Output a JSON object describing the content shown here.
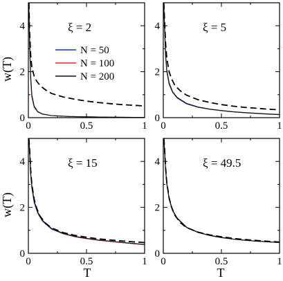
{
  "figure": {
    "ylabel": "w(T)",
    "xlabel": "T"
  },
  "legend": {
    "entries": [
      {
        "label": "N = 50",
        "color": "#1f2fd6"
      },
      {
        "label": "N = 100",
        "color": "#d42a2a"
      },
      {
        "label": "N = 200",
        "color": "#111111"
      }
    ]
  },
  "colors": {
    "n50": "#1f2fd6",
    "n100": "#d42a2a",
    "n200": "#111111",
    "theory": "#000000"
  },
  "chart_data": [
    {
      "type": "line",
      "title": "ξ = 2",
      "xlim": [
        0,
        1
      ],
      "ylim": [
        0,
        5
      ],
      "xticks": [
        0,
        0.5,
        1
      ],
      "xtick_labels": [
        "0",
        "0.5",
        "1"
      ],
      "yticks": [
        0,
        2,
        4
      ],
      "ytick_labels": [
        "0",
        "2",
        "4"
      ],
      "show_legend": true,
      "series": [
        {
          "name": "N = 50",
          "style": "solid",
          "x": [
            0.004,
            0.01,
            0.02,
            0.03,
            0.05,
            0.08,
            0.12,
            0.2,
            0.35,
            0.5,
            0.7,
            1.0
          ],
          "y": [
            5.0,
            3.2,
            1.6,
            0.9,
            0.45,
            0.25,
            0.15,
            0.09,
            0.05,
            0.035,
            0.02,
            0.01
          ]
        },
        {
          "name": "N = 100",
          "style": "solid",
          "x": [
            0.004,
            0.01,
            0.02,
            0.03,
            0.05,
            0.08,
            0.12,
            0.2,
            0.35,
            0.5,
            0.7,
            1.0
          ],
          "y": [
            5.0,
            3.3,
            1.7,
            0.95,
            0.48,
            0.26,
            0.16,
            0.09,
            0.05,
            0.035,
            0.02,
            0.01
          ]
        },
        {
          "name": "N = 200",
          "style": "solid",
          "x": [
            0.004,
            0.01,
            0.02,
            0.03,
            0.05,
            0.08,
            0.12,
            0.2,
            0.35,
            0.5,
            0.7,
            1.0
          ],
          "y": [
            5.0,
            3.4,
            1.8,
            1.0,
            0.5,
            0.27,
            0.16,
            0.09,
            0.05,
            0.035,
            0.02,
            0.01
          ]
        },
        {
          "style": "dashed",
          "x": [
            0.005,
            0.01,
            0.02,
            0.03,
            0.05,
            0.07,
            0.1,
            0.15,
            0.2,
            0.3,
            0.4,
            0.5,
            0.6,
            0.7,
            0.8,
            0.9,
            1.0
          ],
          "y": [
            5.0,
            3.8,
            2.7,
            2.2,
            1.8,
            1.6,
            1.4,
            1.2,
            1.05,
            0.9,
            0.8,
            0.72,
            0.66,
            0.61,
            0.57,
            0.54,
            0.51
          ]
        }
      ]
    },
    {
      "type": "line",
      "title": "ξ = 5",
      "xlim": [
        0,
        1
      ],
      "ylim": [
        0,
        5
      ],
      "xticks": [
        0,
        0.5,
        1
      ],
      "xtick_labels": [
        "0",
        "0.5",
        "1"
      ],
      "yticks": [
        0,
        2,
        4
      ],
      "ytick_labels": [
        "0",
        "2",
        "4"
      ],
      "show_legend": false,
      "series": [
        {
          "name": "N = 50",
          "style": "solid",
          "x": [
            0.004,
            0.01,
            0.02,
            0.03,
            0.05,
            0.08,
            0.12,
            0.2,
            0.3,
            0.4,
            0.5,
            0.6,
            0.7,
            0.8,
            0.9,
            1.0
          ],
          "y": [
            5.0,
            3.9,
            2.6,
            2.0,
            1.45,
            1.1,
            0.85,
            0.6,
            0.45,
            0.36,
            0.3,
            0.25,
            0.21,
            0.18,
            0.15,
            0.13
          ]
        },
        {
          "name": "N = 100",
          "style": "solid",
          "x": [
            0.004,
            0.01,
            0.02,
            0.03,
            0.05,
            0.08,
            0.12,
            0.2,
            0.3,
            0.4,
            0.5,
            0.6,
            0.7,
            0.8,
            0.9,
            1.0
          ],
          "y": [
            5.0,
            4.0,
            2.7,
            2.05,
            1.5,
            1.12,
            0.87,
            0.62,
            0.46,
            0.37,
            0.31,
            0.26,
            0.22,
            0.19,
            0.16,
            0.14
          ]
        },
        {
          "name": "N = 200",
          "style": "solid",
          "x": [
            0.004,
            0.01,
            0.02,
            0.03,
            0.05,
            0.08,
            0.12,
            0.2,
            0.3,
            0.4,
            0.5,
            0.6,
            0.7,
            0.8,
            0.9,
            1.0
          ],
          "y": [
            5.0,
            4.1,
            2.75,
            2.1,
            1.52,
            1.13,
            0.88,
            0.62,
            0.46,
            0.37,
            0.31,
            0.26,
            0.22,
            0.19,
            0.16,
            0.14
          ]
        },
        {
          "style": "dashed",
          "x": [
            0.005,
            0.01,
            0.02,
            0.03,
            0.05,
            0.07,
            0.1,
            0.15,
            0.2,
            0.3,
            0.4,
            0.5,
            0.6,
            0.7,
            0.8,
            0.9,
            1.0
          ],
          "y": [
            5.0,
            4.3,
            3.2,
            2.6,
            2.0,
            1.7,
            1.4,
            1.15,
            0.98,
            0.78,
            0.66,
            0.57,
            0.5,
            0.45,
            0.41,
            0.37,
            0.34
          ]
        }
      ]
    },
    {
      "type": "line",
      "title": "ξ = 15",
      "xlim": [
        0,
        1
      ],
      "ylim": [
        0,
        5
      ],
      "xticks": [
        0,
        0.5,
        1
      ],
      "xtick_labels": [
        "0",
        "0.5",
        "1"
      ],
      "yticks": [
        0,
        2,
        4
      ],
      "ytick_labels": [
        "0",
        "2",
        "4"
      ],
      "show_legend": false,
      "series": [
        {
          "name": "N = 50",
          "style": "solid",
          "x": [
            0.004,
            0.01,
            0.02,
            0.03,
            0.05,
            0.08,
            0.12,
            0.2,
            0.3,
            0.4,
            0.5,
            0.6,
            0.7,
            0.8,
            0.9,
            1.0
          ],
          "y": [
            5.0,
            4.4,
            3.4,
            2.85,
            2.2,
            1.75,
            1.4,
            1.05,
            0.85,
            0.72,
            0.64,
            0.57,
            0.52,
            0.47,
            0.42,
            0.38
          ]
        },
        {
          "name": "N = 100",
          "style": "solid",
          "x": [
            0.004,
            0.01,
            0.02,
            0.03,
            0.05,
            0.08,
            0.12,
            0.2,
            0.3,
            0.4,
            0.5,
            0.6,
            0.7,
            0.8,
            0.9,
            1.0
          ],
          "y": [
            5.0,
            4.45,
            3.45,
            2.9,
            2.25,
            1.78,
            1.42,
            1.07,
            0.86,
            0.73,
            0.64,
            0.57,
            0.52,
            0.47,
            0.42,
            0.38
          ]
        },
        {
          "name": "N = 200",
          "style": "solid",
          "x": [
            0.004,
            0.01,
            0.02,
            0.03,
            0.05,
            0.08,
            0.12,
            0.2,
            0.3,
            0.4,
            0.5,
            0.6,
            0.7,
            0.8,
            0.9,
            1.0
          ],
          "y": [
            5.0,
            4.5,
            3.5,
            2.95,
            2.28,
            1.8,
            1.44,
            1.08,
            0.87,
            0.74,
            0.65,
            0.58,
            0.53,
            0.48,
            0.43,
            0.39
          ]
        },
        {
          "style": "dashed",
          "x": [
            0.005,
            0.01,
            0.02,
            0.03,
            0.05,
            0.07,
            0.1,
            0.15,
            0.2,
            0.3,
            0.4,
            0.5,
            0.6,
            0.7,
            0.8,
            0.9,
            1.0
          ],
          "y": [
            5.0,
            4.6,
            3.6,
            3.0,
            2.35,
            1.98,
            1.62,
            1.3,
            1.1,
            0.9,
            0.78,
            0.7,
            0.63,
            0.58,
            0.54,
            0.5,
            0.47
          ]
        }
      ]
    },
    {
      "type": "line",
      "title": "ξ = 49.5",
      "xlim": [
        0,
        1
      ],
      "ylim": [
        0,
        5
      ],
      "xticks": [
        0,
        0.5,
        1
      ],
      "xtick_labels": [
        "0",
        "0.5",
        "1"
      ],
      "yticks": [
        0,
        2,
        4
      ],
      "ytick_labels": [
        "0",
        "2",
        "4"
      ],
      "show_legend": false,
      "series": [
        {
          "name": "N = 50",
          "style": "solid",
          "x": [
            0.004,
            0.01,
            0.02,
            0.03,
            0.05,
            0.08,
            0.12,
            0.2,
            0.3,
            0.4,
            0.5,
            0.6,
            0.7,
            0.8,
            0.9,
            1.0
          ],
          "y": [
            5.0,
            4.5,
            3.55,
            3.0,
            2.35,
            1.85,
            1.5,
            1.12,
            0.9,
            0.77,
            0.68,
            0.62,
            0.57,
            0.53,
            0.5,
            0.47
          ]
        },
        {
          "name": "N = 100",
          "style": "solid",
          "x": [
            0.004,
            0.01,
            0.02,
            0.03,
            0.05,
            0.08,
            0.12,
            0.2,
            0.3,
            0.4,
            0.5,
            0.6,
            0.7,
            0.8,
            0.9,
            1.0
          ],
          "y": [
            5.0,
            4.55,
            3.6,
            3.05,
            2.38,
            1.87,
            1.52,
            1.13,
            0.91,
            0.78,
            0.69,
            0.62,
            0.57,
            0.53,
            0.5,
            0.47
          ]
        },
        {
          "name": "N = 200",
          "style": "solid",
          "x": [
            0.004,
            0.01,
            0.02,
            0.03,
            0.05,
            0.08,
            0.12,
            0.2,
            0.3,
            0.4,
            0.5,
            0.6,
            0.7,
            0.8,
            0.9,
            1.0
          ],
          "y": [
            5.0,
            4.6,
            3.65,
            3.08,
            2.4,
            1.88,
            1.53,
            1.14,
            0.92,
            0.78,
            0.69,
            0.62,
            0.57,
            0.53,
            0.5,
            0.47
          ]
        },
        {
          "style": "dashed",
          "x": [
            0.005,
            0.01,
            0.02,
            0.03,
            0.05,
            0.07,
            0.1,
            0.15,
            0.2,
            0.3,
            0.4,
            0.5,
            0.6,
            0.7,
            0.8,
            0.9,
            1.0
          ],
          "y": [
            5.0,
            4.65,
            3.7,
            3.1,
            2.42,
            2.02,
            1.65,
            1.32,
            1.12,
            0.92,
            0.8,
            0.72,
            0.65,
            0.6,
            0.56,
            0.52,
            0.49
          ]
        }
      ]
    }
  ]
}
